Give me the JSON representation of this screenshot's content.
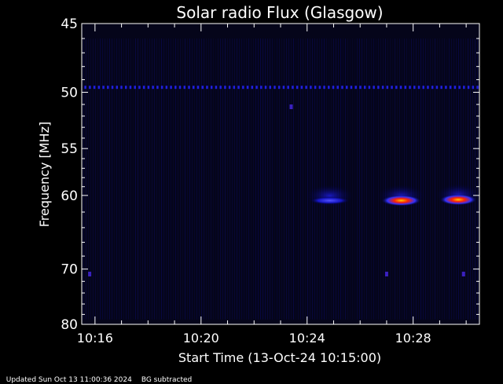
{
  "chart_data": {
    "type": "heatmap",
    "title": "Solar radio Flux (Glasgow)",
    "xlabel": "Start Time (13-Oct-24 10:15:00)",
    "ylabel": "Frequency [MHz]",
    "x_ticks": [
      "10:16",
      "10:20",
      "10:24",
      "10:28"
    ],
    "x_tick_minutes": [
      1,
      5,
      9,
      13
    ],
    "xlim_minutes": [
      0.5,
      15.5
    ],
    "y_ticks": [
      45,
      50,
      55,
      60,
      70,
      80
    ],
    "y_scale": "reciprocal",
    "ylim": [
      45,
      80
    ],
    "colormap": [
      "#000000",
      "#0000cc",
      "#3333ff",
      "#ff0000",
      "#ffaa00"
    ],
    "features": [
      {
        "kind": "band",
        "freq": 49.6,
        "from_min": 0.6,
        "to_min": 15.4,
        "intensity": "low",
        "dashed": true
      },
      {
        "kind": "burst",
        "freq": 60.6,
        "from_min": 9.1,
        "to_min": 10.6,
        "intensity": "medium"
      },
      {
        "kind": "burst",
        "freq": 60.6,
        "from_min": 11.8,
        "to_min": 13.3,
        "intensity": "high"
      },
      {
        "kind": "burst",
        "freq": 60.5,
        "from_min": 14.0,
        "to_min": 15.4,
        "intensity": "high"
      },
      {
        "kind": "spot",
        "freq": 51.2,
        "at_min": 8.4,
        "intensity": "low"
      },
      {
        "kind": "spot",
        "freq": 70.8,
        "at_min": 0.8,
        "intensity": "low"
      },
      {
        "kind": "spot",
        "freq": 70.8,
        "at_min": 12.0,
        "intensity": "low"
      },
      {
        "kind": "spot",
        "freq": 70.8,
        "at_min": 14.9,
        "intensity": "low"
      }
    ]
  },
  "footer": {
    "updated": "Updated Sun Oct 13 11:00:36 2024",
    "note": "BG subtracted"
  }
}
